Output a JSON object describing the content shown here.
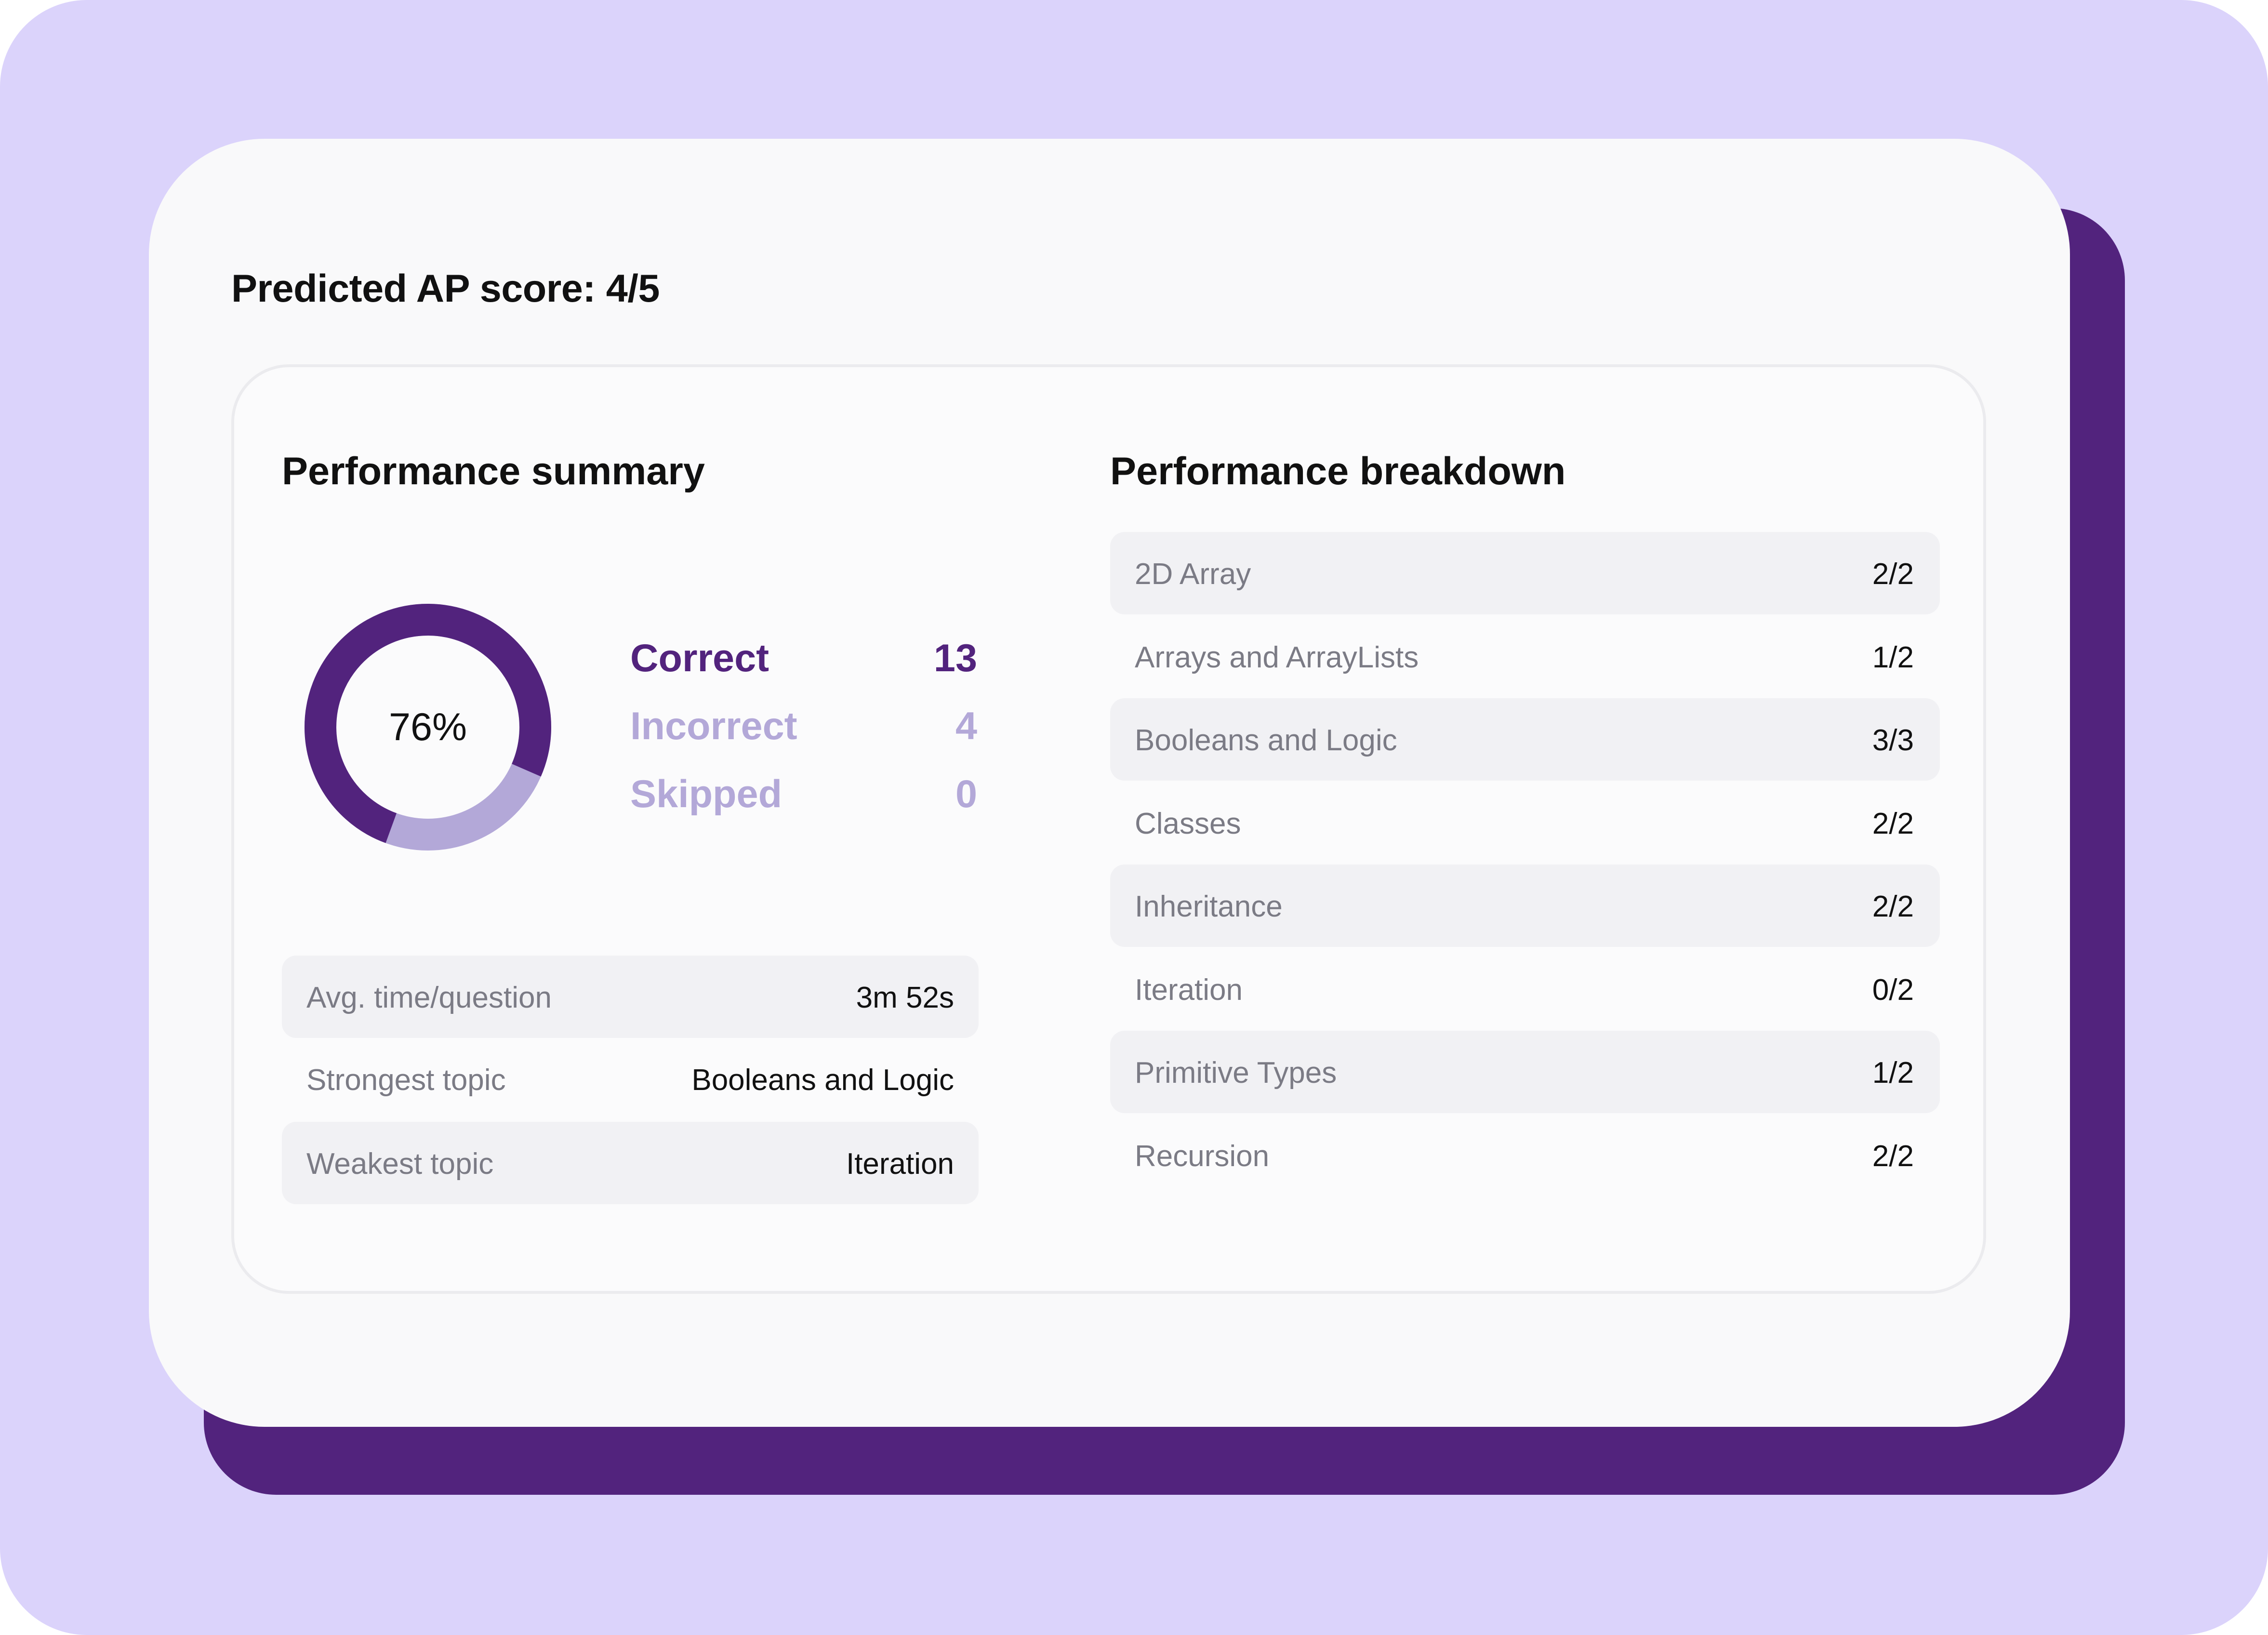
{
  "header": {
    "predicted_score": "Predicted AP score: 4/5"
  },
  "summary": {
    "title": "Performance summary",
    "percent_label": "76%",
    "percent_value": 76,
    "legend": [
      {
        "label": "Correct",
        "count": "13",
        "color": "#52237d"
      },
      {
        "label": "Incorrect",
        "count": "4",
        "color": "#b3a8d8"
      },
      {
        "label": "Skipped",
        "count": "0",
        "color": "#b3a8d8"
      }
    ],
    "stats": [
      {
        "label": "Avg. time/question",
        "value": "3m 52s"
      },
      {
        "label": "Strongest topic",
        "value": "Booleans and Logic"
      },
      {
        "label": "Weakest topic",
        "value": "Iteration"
      }
    ]
  },
  "breakdown": {
    "title": "Performance breakdown",
    "rows": [
      {
        "topic": "2D Array",
        "score": "2/2"
      },
      {
        "topic": "Arrays and ArrayLists",
        "score": "1/2"
      },
      {
        "topic": "Booleans and Logic",
        "score": "3/3"
      },
      {
        "topic": "Classes",
        "score": "2/2"
      },
      {
        "topic": "Inheritance",
        "score": "2/2"
      },
      {
        "topic": "Iteration",
        "score": "0/2"
      },
      {
        "topic": "Primitive Types",
        "score": "1/2"
      },
      {
        "topic": "Recursion",
        "score": "2/2"
      }
    ]
  },
  "colors": {
    "background": "#dbd3fb",
    "accent_dark": "#52237d",
    "accent_light": "#b3a8d8",
    "card": "#f9f9fa"
  }
}
